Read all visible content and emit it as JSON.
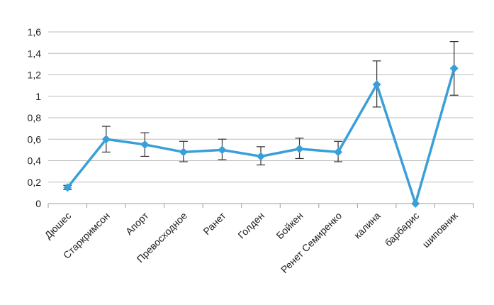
{
  "chart_data": {
    "type": "line",
    "title": "",
    "xlabel": "",
    "ylabel": "",
    "ylim": [
      0,
      1.6
    ],
    "yticks": [
      "0",
      "0,2",
      "0,4",
      "0,6",
      "0,8",
      "1",
      "1,2",
      "1,4",
      "1,6"
    ],
    "grid": true,
    "legend": "none",
    "categories": [
      "Дюшес",
      "Старкримсон",
      "Апорт",
      "Превосходное",
      "Ранет",
      "Голден",
      "Бойкен",
      "Ренет Семиренко",
      "калина",
      "барбарис",
      "шиповник"
    ],
    "series": [
      {
        "values": [
          0.15,
          0.6,
          0.55,
          0.48,
          0.5,
          0.44,
          0.51,
          0.48,
          1.11,
          0.0,
          1.26
        ],
        "error_low": [
          0.13,
          0.48,
          0.44,
          0.39,
          0.41,
          0.36,
          0.42,
          0.39,
          0.9,
          0.0,
          1.01
        ],
        "error_high": [
          0.17,
          0.72,
          0.66,
          0.58,
          0.6,
          0.53,
          0.61,
          0.58,
          1.33,
          0.0,
          1.51
        ],
        "color": "#3A9FD8"
      }
    ]
  }
}
